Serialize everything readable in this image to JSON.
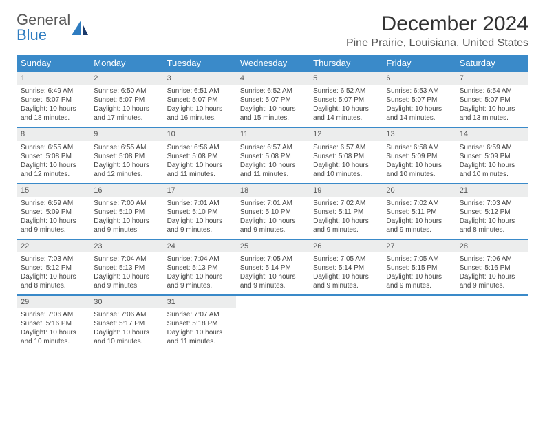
{
  "logo": {
    "text_general": "General",
    "text_blue": "Blue"
  },
  "header": {
    "month_title": "December 2024",
    "location": "Pine Prairie, Louisiana, United States"
  },
  "colors": {
    "header_bg": "#3a8ac9",
    "header_text": "#ffffff",
    "date_bg": "#eceded",
    "border": "#3a8ac9"
  },
  "day_names": [
    "Sunday",
    "Monday",
    "Tuesday",
    "Wednesday",
    "Thursday",
    "Friday",
    "Saturday"
  ],
  "weeks": [
    [
      {
        "n": "1",
        "sr": "Sunrise: 6:49 AM",
        "ss": "Sunset: 5:07 PM",
        "dl": "Daylight: 10 hours and 18 minutes."
      },
      {
        "n": "2",
        "sr": "Sunrise: 6:50 AM",
        "ss": "Sunset: 5:07 PM",
        "dl": "Daylight: 10 hours and 17 minutes."
      },
      {
        "n": "3",
        "sr": "Sunrise: 6:51 AM",
        "ss": "Sunset: 5:07 PM",
        "dl": "Daylight: 10 hours and 16 minutes."
      },
      {
        "n": "4",
        "sr": "Sunrise: 6:52 AM",
        "ss": "Sunset: 5:07 PM",
        "dl": "Daylight: 10 hours and 15 minutes."
      },
      {
        "n": "5",
        "sr": "Sunrise: 6:52 AM",
        "ss": "Sunset: 5:07 PM",
        "dl": "Daylight: 10 hours and 14 minutes."
      },
      {
        "n": "6",
        "sr": "Sunrise: 6:53 AM",
        "ss": "Sunset: 5:07 PM",
        "dl": "Daylight: 10 hours and 14 minutes."
      },
      {
        "n": "7",
        "sr": "Sunrise: 6:54 AM",
        "ss": "Sunset: 5:07 PM",
        "dl": "Daylight: 10 hours and 13 minutes."
      }
    ],
    [
      {
        "n": "8",
        "sr": "Sunrise: 6:55 AM",
        "ss": "Sunset: 5:08 PM",
        "dl": "Daylight: 10 hours and 12 minutes."
      },
      {
        "n": "9",
        "sr": "Sunrise: 6:55 AM",
        "ss": "Sunset: 5:08 PM",
        "dl": "Daylight: 10 hours and 12 minutes."
      },
      {
        "n": "10",
        "sr": "Sunrise: 6:56 AM",
        "ss": "Sunset: 5:08 PM",
        "dl": "Daylight: 10 hours and 11 minutes."
      },
      {
        "n": "11",
        "sr": "Sunrise: 6:57 AM",
        "ss": "Sunset: 5:08 PM",
        "dl": "Daylight: 10 hours and 11 minutes."
      },
      {
        "n": "12",
        "sr": "Sunrise: 6:57 AM",
        "ss": "Sunset: 5:08 PM",
        "dl": "Daylight: 10 hours and 10 minutes."
      },
      {
        "n": "13",
        "sr": "Sunrise: 6:58 AM",
        "ss": "Sunset: 5:09 PM",
        "dl": "Daylight: 10 hours and 10 minutes."
      },
      {
        "n": "14",
        "sr": "Sunrise: 6:59 AM",
        "ss": "Sunset: 5:09 PM",
        "dl": "Daylight: 10 hours and 10 minutes."
      }
    ],
    [
      {
        "n": "15",
        "sr": "Sunrise: 6:59 AM",
        "ss": "Sunset: 5:09 PM",
        "dl": "Daylight: 10 hours and 9 minutes."
      },
      {
        "n": "16",
        "sr": "Sunrise: 7:00 AM",
        "ss": "Sunset: 5:10 PM",
        "dl": "Daylight: 10 hours and 9 minutes."
      },
      {
        "n": "17",
        "sr": "Sunrise: 7:01 AM",
        "ss": "Sunset: 5:10 PM",
        "dl": "Daylight: 10 hours and 9 minutes."
      },
      {
        "n": "18",
        "sr": "Sunrise: 7:01 AM",
        "ss": "Sunset: 5:10 PM",
        "dl": "Daylight: 10 hours and 9 minutes."
      },
      {
        "n": "19",
        "sr": "Sunrise: 7:02 AM",
        "ss": "Sunset: 5:11 PM",
        "dl": "Daylight: 10 hours and 9 minutes."
      },
      {
        "n": "20",
        "sr": "Sunrise: 7:02 AM",
        "ss": "Sunset: 5:11 PM",
        "dl": "Daylight: 10 hours and 9 minutes."
      },
      {
        "n": "21",
        "sr": "Sunrise: 7:03 AM",
        "ss": "Sunset: 5:12 PM",
        "dl": "Daylight: 10 hours and 8 minutes."
      }
    ],
    [
      {
        "n": "22",
        "sr": "Sunrise: 7:03 AM",
        "ss": "Sunset: 5:12 PM",
        "dl": "Daylight: 10 hours and 8 minutes."
      },
      {
        "n": "23",
        "sr": "Sunrise: 7:04 AM",
        "ss": "Sunset: 5:13 PM",
        "dl": "Daylight: 10 hours and 9 minutes."
      },
      {
        "n": "24",
        "sr": "Sunrise: 7:04 AM",
        "ss": "Sunset: 5:13 PM",
        "dl": "Daylight: 10 hours and 9 minutes."
      },
      {
        "n": "25",
        "sr": "Sunrise: 7:05 AM",
        "ss": "Sunset: 5:14 PM",
        "dl": "Daylight: 10 hours and 9 minutes."
      },
      {
        "n": "26",
        "sr": "Sunrise: 7:05 AM",
        "ss": "Sunset: 5:14 PM",
        "dl": "Daylight: 10 hours and 9 minutes."
      },
      {
        "n": "27",
        "sr": "Sunrise: 7:05 AM",
        "ss": "Sunset: 5:15 PM",
        "dl": "Daylight: 10 hours and 9 minutes."
      },
      {
        "n": "28",
        "sr": "Sunrise: 7:06 AM",
        "ss": "Sunset: 5:16 PM",
        "dl": "Daylight: 10 hours and 9 minutes."
      }
    ],
    [
      {
        "n": "29",
        "sr": "Sunrise: 7:06 AM",
        "ss": "Sunset: 5:16 PM",
        "dl": "Daylight: 10 hours and 10 minutes."
      },
      {
        "n": "30",
        "sr": "Sunrise: 7:06 AM",
        "ss": "Sunset: 5:17 PM",
        "dl": "Daylight: 10 hours and 10 minutes."
      },
      {
        "n": "31",
        "sr": "Sunrise: 7:07 AM",
        "ss": "Sunset: 5:18 PM",
        "dl": "Daylight: 10 hours and 11 minutes."
      },
      null,
      null,
      null,
      null
    ]
  ]
}
